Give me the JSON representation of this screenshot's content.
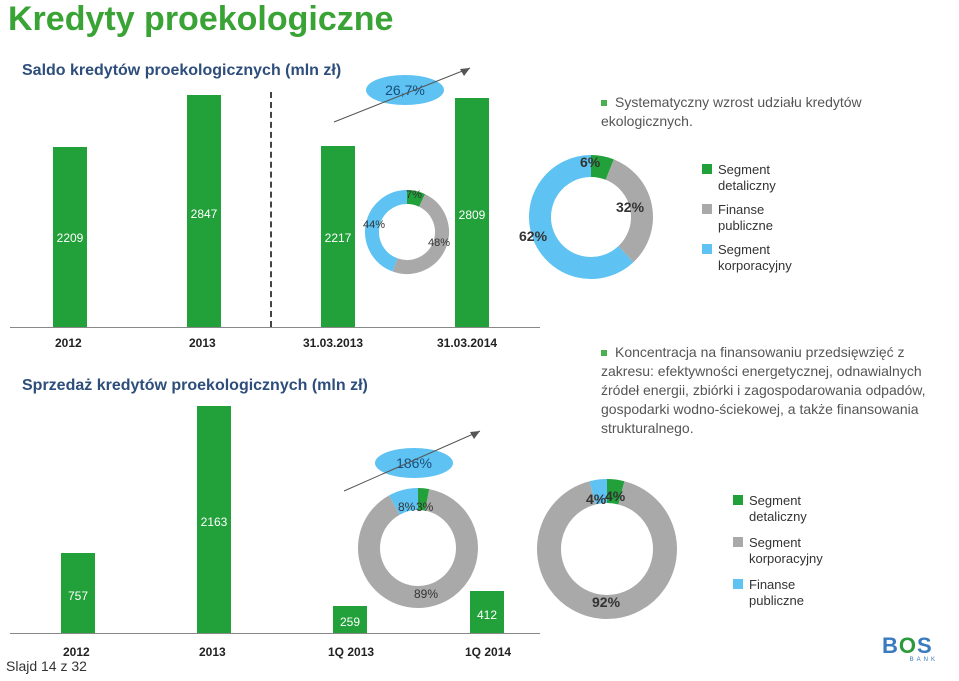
{
  "title": "Kredyty proekologiczne",
  "slide_number": "Slajd 14 z 32",
  "colors": {
    "green": "#22a03a",
    "gray": "#a9a9a9",
    "blue": "#5ec2f2",
    "title_green": "#3aa335",
    "navy": "#2d4d7a"
  },
  "top": {
    "section_title": "Saldo kredytów proekologicznych (mln zł)",
    "growth_label": "26,7%",
    "bullet": "Systematyczny wzrost udziału kredytów ekologicznych.",
    "legend": [
      "Segment detaliczny",
      "Finanse publiczne",
      "Segment korporacyjny"
    ]
  },
  "bottom": {
    "section_title": "Sprzedaż kredytów proekologicznych (mln zł)",
    "growth_label": "186%",
    "bullet": "Koncentracja na finansowaniu przedsięwzięć z zakresu: efektywności energetycznej, odnawialnych źródeł energii, zbiórki i zagospodarowania odpadów, gospodarki wodno-ściekowej, a także finansowania strukturalnego.",
    "legend": [
      "Segment detaliczny",
      "Segment korporacyjny",
      "Finanse publiczne"
    ]
  },
  "logo": {
    "name": "BOS",
    "sub": "BANK"
  },
  "chart_data": [
    {
      "type": "bar",
      "categories": [
        "2012",
        "2013",
        "31.03.2013",
        "31.03.2014"
      ],
      "values": [
        2209,
        2847,
        2217,
        2809
      ],
      "value_labels": [
        "2209",
        "2847",
        "2217",
        "2809"
      ],
      "ylim": [
        0,
        3000
      ]
    },
    {
      "type": "pie",
      "donut": true,
      "period": "31.03.2013",
      "slices": [
        {
          "label": "7%",
          "value": 7,
          "color": "#22a03a"
        },
        {
          "label": "48%",
          "value": 48,
          "color": "#a9a9a9"
        },
        {
          "label": "44%",
          "value": 44,
          "color": "#5ec2f2"
        }
      ]
    },
    {
      "type": "pie",
      "donut": true,
      "period": "31.03.2014",
      "slices": [
        {
          "label": "6%",
          "value": 6,
          "color": "#22a03a"
        },
        {
          "label": "32%",
          "value": 32,
          "color": "#a9a9a9"
        },
        {
          "label": "62%",
          "value": 62,
          "color": "#5ec2f2"
        }
      ]
    },
    {
      "type": "bar",
      "categories": [
        "2012",
        "2013",
        "1Q 2013",
        "1Q 2014"
      ],
      "values": [
        757,
        2163,
        259,
        412
      ],
      "value_labels": [
        "757",
        "2163",
        "259",
        "412"
      ],
      "ylim": [
        0,
        2300
      ]
    },
    {
      "type": "pie",
      "donut": true,
      "period": "1Q 2013",
      "slices": [
        {
          "label": "3%",
          "value": 3,
          "color": "#22a03a"
        },
        {
          "label": "89%",
          "value": 89,
          "color": "#a9a9a9"
        },
        {
          "label": "8%",
          "value": 8,
          "color": "#5ec2f2"
        }
      ]
    },
    {
      "type": "pie",
      "donut": true,
      "period": "1Q 2014",
      "slices": [
        {
          "label": "4%",
          "value": 4,
          "color": "#22a03a"
        },
        {
          "label": "92%",
          "value": 92,
          "color": "#a9a9a9"
        },
        {
          "label": "4%",
          "value": 4,
          "color": "#5ec2f2"
        }
      ]
    }
  ]
}
